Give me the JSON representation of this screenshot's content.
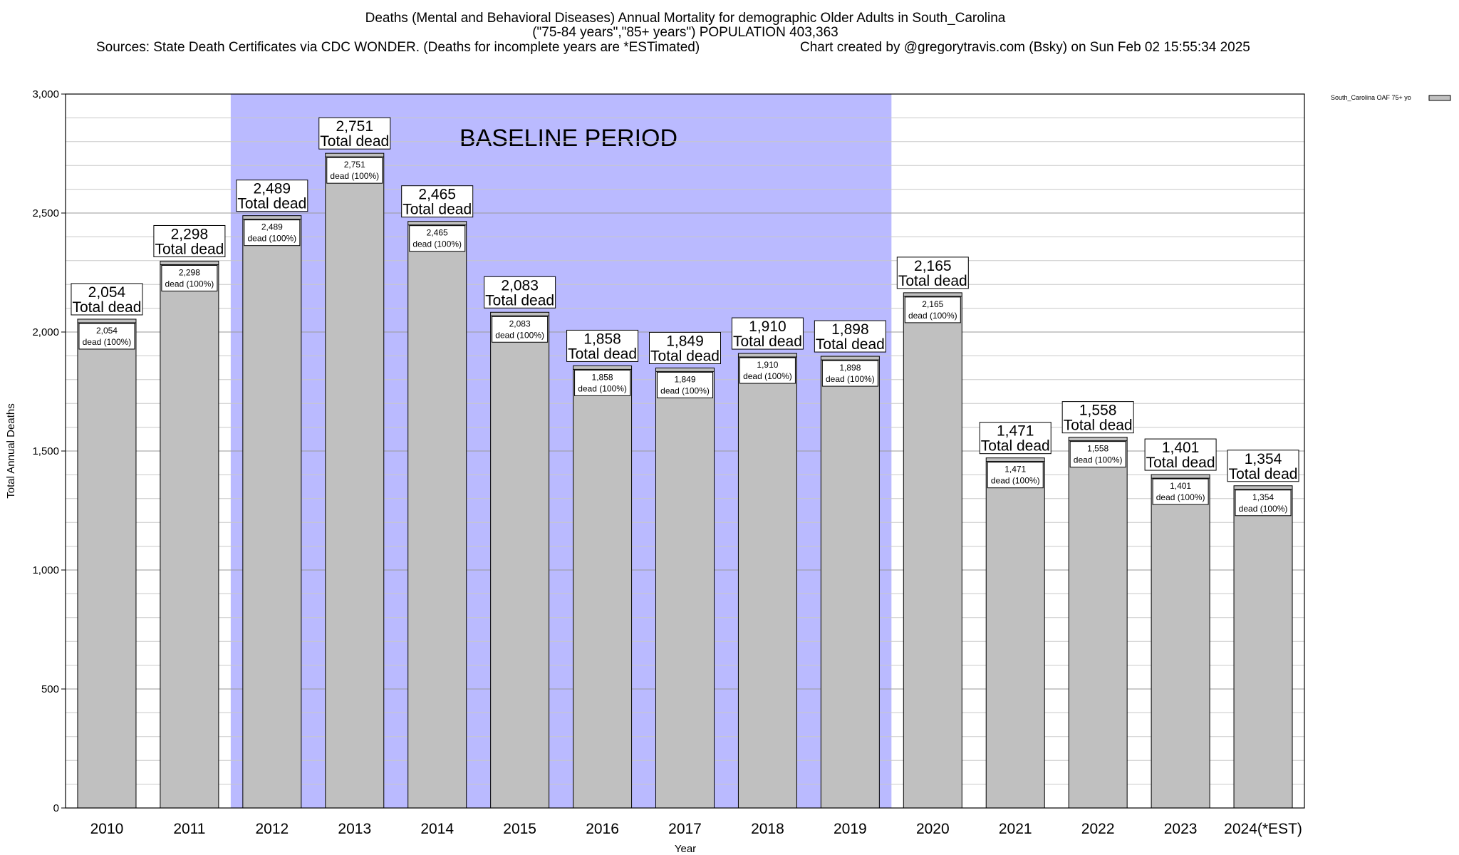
{
  "chart_data": {
    "type": "bar",
    "title_lines": [
      "Deaths (Mental and Behavioral Diseases) Annual Mortality for demographic Older Adults in South_Carolina",
      "(\"75-84 years\",\"85+ years\") POPULATION 403,363"
    ],
    "sources_text": "Sources: State Death Certificates via CDC WONDER. (Deaths for incomplete years are *ESTimated)",
    "credit_text": "Chart created by @gregorytravis.com (Bsky) on Sun Feb 02 15:55:34 2025",
    "xlabel": "Year",
    "ylabel": "Total Annual Deaths",
    "ylim": [
      0,
      3000
    ],
    "yticks": [
      0,
      500,
      1000,
      1500,
      2000,
      2500,
      3000
    ],
    "ytick_labels": [
      "0",
      "500",
      "1,000",
      "1,500",
      "2,000",
      "2,500",
      "3,000"
    ],
    "minor_step": 100,
    "categories": [
      "2010",
      "2011",
      "2012",
      "2013",
      "2014",
      "2015",
      "2016",
      "2017",
      "2018",
      "2019",
      "2020",
      "2021",
      "2022",
      "2023",
      "2024(*EST)"
    ],
    "values": [
      2054,
      2298,
      2489,
      2751,
      2465,
      2083,
      1858,
      1849,
      1910,
      1898,
      2165,
      1471,
      1558,
      1401,
      1354
    ],
    "value_labels": [
      "2,054",
      "2,298",
      "2,489",
      "2,751",
      "2,465",
      "2,083",
      "1,858",
      "1,849",
      "1,910",
      "1,898",
      "2,165",
      "1,471",
      "1,558",
      "1,401",
      "1,354"
    ],
    "total_label_suffix": "Total dead",
    "inner_label_suffix": "dead (100%)",
    "baseline": {
      "label": "BASELINE PERIOD",
      "from": "2012",
      "to": "2019",
      "color": "#babaff"
    },
    "legend": {
      "label": "South_Carolina OAF 75+ yo",
      "placement": "top-right"
    },
    "bar_color": "#c0c0c0",
    "grid": true
  }
}
